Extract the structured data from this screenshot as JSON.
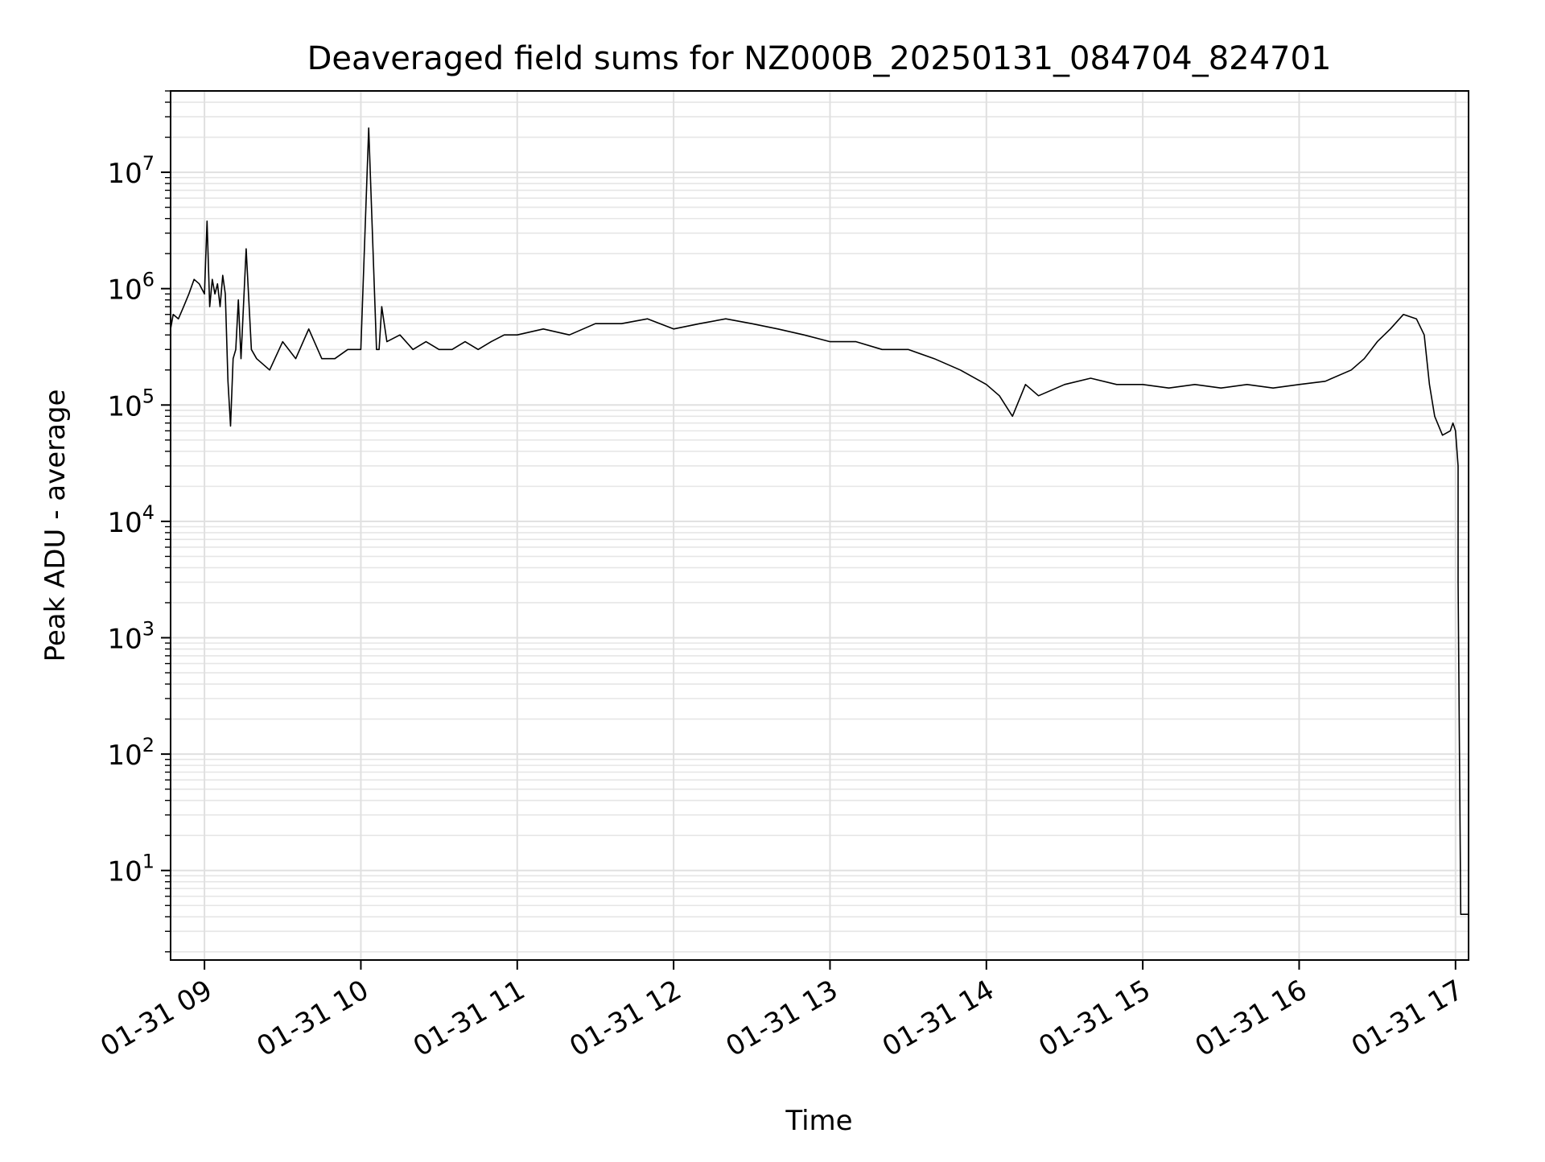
{
  "chart_data": {
    "type": "line",
    "title": "Deaveraged field sums for NZ000B_20250131_084704_824701",
    "xlabel": "Time",
    "ylabel": "Peak ADU - average",
    "yscale": "log",
    "grid": true,
    "legend": "none",
    "xlim": [
      "2025-01-31 08:47",
      "2025-01-31 17:05"
    ],
    "ylim": [
      1.7,
      50000000
    ],
    "x_tick_labels": [
      {
        "t": "2025-01-31 09:00",
        "label": "01-31 09"
      },
      {
        "t": "2025-01-31 10:00",
        "label": "01-31 10"
      },
      {
        "t": "2025-01-31 11:00",
        "label": "01-31 11"
      },
      {
        "t": "2025-01-31 12:00",
        "label": "01-31 12"
      },
      {
        "t": "2025-01-31 13:00",
        "label": "01-31 13"
      },
      {
        "t": "2025-01-31 14:00",
        "label": "01-31 14"
      },
      {
        "t": "2025-01-31 15:00",
        "label": "01-31 15"
      },
      {
        "t": "2025-01-31 16:00",
        "label": "01-31 16"
      },
      {
        "t": "2025-01-31 17:00",
        "label": "01-31 17"
      }
    ],
    "y_tick_labels": [
      {
        "value": 10,
        "base": "10",
        "exp": "1"
      },
      {
        "value": 100,
        "base": "10",
        "exp": "2"
      },
      {
        "value": 1000,
        "base": "10",
        "exp": "3"
      },
      {
        "value": 10000,
        "base": "10",
        "exp": "4"
      },
      {
        "value": 100000,
        "base": "10",
        "exp": "5"
      },
      {
        "value": 1000000,
        "base": "10",
        "exp": "6"
      },
      {
        "value": 10000000,
        "base": "10",
        "exp": "7"
      }
    ],
    "series_color": "#000000",
    "series": [
      {
        "x": [
          "2025-01-31 08:47",
          "2025-01-31 08:48",
          "2025-01-31 08:50",
          "2025-01-31 08:52",
          "2025-01-31 08:54",
          "2025-01-31 08:56",
          "2025-01-31 08:58",
          "2025-01-31 09:00",
          "2025-01-31 09:01",
          "2025-01-31 09:02",
          "2025-01-31 09:03",
          "2025-01-31 09:04",
          "2025-01-31 09:05",
          "2025-01-31 09:06",
          "2025-01-31 09:07",
          "2025-01-31 09:08",
          "2025-01-31 09:09",
          "2025-01-31 09:10",
          "2025-01-31 09:11",
          "2025-01-31 09:12",
          "2025-01-31 09:13",
          "2025-01-31 09:14",
          "2025-01-31 09:16",
          "2025-01-31 09:18",
          "2025-01-31 09:20",
          "2025-01-31 09:25",
          "2025-01-31 09:30",
          "2025-01-31 09:35",
          "2025-01-31 09:40",
          "2025-01-31 09:45",
          "2025-01-31 09:50",
          "2025-01-31 09:55",
          "2025-01-31 10:00",
          "2025-01-31 10:03",
          "2025-01-31 10:06",
          "2025-01-31 10:07",
          "2025-01-31 10:08",
          "2025-01-31 10:10",
          "2025-01-31 10:15",
          "2025-01-31 10:20",
          "2025-01-31 10:25",
          "2025-01-31 10:30",
          "2025-01-31 10:35",
          "2025-01-31 10:40",
          "2025-01-31 10:45",
          "2025-01-31 10:50",
          "2025-01-31 10:55",
          "2025-01-31 11:00",
          "2025-01-31 11:10",
          "2025-01-31 11:20",
          "2025-01-31 11:30",
          "2025-01-31 11:40",
          "2025-01-31 11:50",
          "2025-01-31 12:00",
          "2025-01-31 12:10",
          "2025-01-31 12:20",
          "2025-01-31 12:30",
          "2025-01-31 12:40",
          "2025-01-31 12:50",
          "2025-01-31 13:00",
          "2025-01-31 13:10",
          "2025-01-31 13:20",
          "2025-01-31 13:30",
          "2025-01-31 13:40",
          "2025-01-31 13:50",
          "2025-01-31 14:00",
          "2025-01-31 14:05",
          "2025-01-31 14:10",
          "2025-01-31 14:15",
          "2025-01-31 14:20",
          "2025-01-31 14:30",
          "2025-01-31 14:40",
          "2025-01-31 14:50",
          "2025-01-31 15:00",
          "2025-01-31 15:10",
          "2025-01-31 15:20",
          "2025-01-31 15:30",
          "2025-01-31 15:40",
          "2025-01-31 15:50",
          "2025-01-31 16:00",
          "2025-01-31 16:10",
          "2025-01-31 16:20",
          "2025-01-31 16:25",
          "2025-01-31 16:30",
          "2025-01-31 16:35",
          "2025-01-31 16:40",
          "2025-01-31 16:45",
          "2025-01-31 16:48",
          "2025-01-31 16:50",
          "2025-01-31 16:52",
          "2025-01-31 16:55",
          "2025-01-31 16:58",
          "2025-01-31 16:59",
          "2025-01-31 17:00",
          "2025-01-31 17:01",
          "2025-01-31 17:01",
          "2025-01-31 17:02",
          "2025-01-31 17:03",
          "2025-01-31 17:05"
        ],
        "y": [
          450000,
          600000,
          550000,
          700000,
          900000,
          1200000,
          1100000,
          900000,
          3800000,
          700000,
          1200000,
          900000,
          1100000,
          700000,
          1300000,
          900000,
          160000,
          66000,
          250000,
          300000,
          800000,
          250000,
          2200000,
          300000,
          250000,
          200000,
          350000,
          250000,
          450000,
          250000,
          250000,
          300000,
          300000,
          24000000,
          300000,
          300000,
          700000,
          350000,
          400000,
          300000,
          350000,
          300000,
          300000,
          350000,
          300000,
          350000,
          400000,
          400000,
          450000,
          400000,
          500000,
          500000,
          550000,
          450000,
          500000,
          550000,
          500000,
          450000,
          400000,
          350000,
          350000,
          300000,
          300000,
          250000,
          200000,
          150000,
          120000,
          80000,
          150000,
          120000,
          150000,
          170000,
          150000,
          150000,
          140000,
          150000,
          140000,
          150000,
          140000,
          150000,
          160000,
          200000,
          250000,
          350000,
          450000,
          600000,
          550000,
          400000,
          150000,
          80000,
          55000,
          60000,
          70000,
          60000,
          30000,
          3000,
          4.2,
          4.2,
          4.2
        ]
      }
    ]
  }
}
